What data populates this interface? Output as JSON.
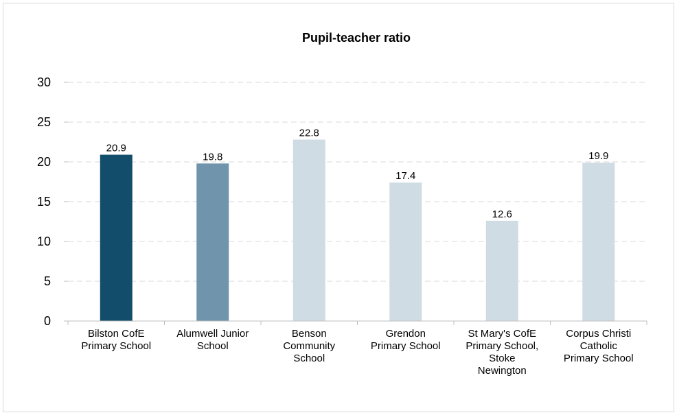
{
  "chart_data": {
    "type": "bar",
    "title": "Pupil-teacher ratio",
    "xlabel": "",
    "ylabel": "",
    "ylim": [
      0,
      30
    ],
    "yticks": [
      0,
      5,
      10,
      15,
      20,
      25,
      30
    ],
    "grid": true,
    "legend": "none",
    "categories": [
      [
        "Bilston CofE",
        "Primary School"
      ],
      [
        "Alumwell Junior",
        "School"
      ],
      [
        "Benson",
        "Community",
        "School"
      ],
      [
        "Grendon",
        "Primary School"
      ],
      [
        "St Mary's CofE",
        "Primary School,",
        "Stoke",
        "Newington"
      ],
      [
        "Corpus Christi",
        "Catholic",
        "Primary School"
      ]
    ],
    "values": [
      20.9,
      19.8,
      22.8,
      17.4,
      12.6,
      19.9
    ],
    "data_labels": [
      "20.9",
      "19.8",
      "22.8",
      "17.4",
      "12.6",
      "19.9"
    ],
    "bar_colors": [
      "#124e6b",
      "#7094ab",
      "#d0dce4",
      "#d0dce4",
      "#d0dce4",
      "#d0dce4"
    ]
  }
}
